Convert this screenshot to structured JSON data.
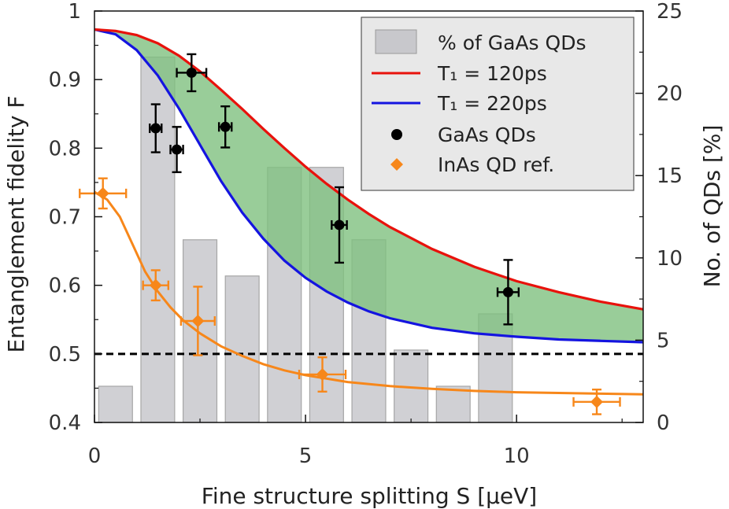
{
  "chart_data": {
    "type": "bar+line+scatter",
    "xlabel": "Fine structure splitting S [µeV]",
    "ylabel": "Entanglement fidelity F",
    "y2label": "No. of QDs [%]",
    "xlim": [
      0,
      13
    ],
    "ylim": [
      0.4,
      1.0
    ],
    "y2lim": [
      0,
      25
    ],
    "xticks": [
      "0",
      "5",
      "10"
    ],
    "yticks": [
      "0.4",
      "0.5",
      "0.6",
      "0.7",
      "0.8",
      "0.9",
      "1"
    ],
    "y2ticks": [
      "0",
      "5",
      "10",
      "15",
      "20",
      "25"
    ],
    "colors": {
      "bars": "#c8c8cc",
      "t120": "#e8120c",
      "t220": "#1414e0",
      "fill": "#7fc07f",
      "gaas": "#000000",
      "inas": "#f7871a",
      "threshold": "#000000"
    },
    "bars": {
      "name": "% of GaAs QDs",
      "centers": [
        0.5,
        1.5,
        2.5,
        3.5,
        4.5,
        5.5,
        6.5,
        7.5,
        8.5,
        9.5
      ],
      "values": [
        2.2,
        22.2,
        11.1,
        8.9,
        15.5,
        15.5,
        11.1,
        4.4,
        2.2,
        6.6
      ]
    },
    "curve_t120": {
      "name": "T₁ = 120ps",
      "x": [
        0,
        0.5,
        1,
        1.5,
        2,
        2.5,
        3,
        3.5,
        4,
        4.5,
        5,
        5.5,
        6,
        6.5,
        7,
        8,
        9,
        10,
        11,
        12,
        13
      ],
      "y": [
        0.973,
        0.971,
        0.965,
        0.953,
        0.935,
        0.912,
        0.885,
        0.857,
        0.828,
        0.8,
        0.773,
        0.748,
        0.725,
        0.704,
        0.685,
        0.653,
        0.627,
        0.606,
        0.59,
        0.576,
        0.565
      ]
    },
    "curve_t220": {
      "name": "T₁ = 220ps",
      "x": [
        0,
        0.5,
        1,
        1.5,
        2,
        2.5,
        3,
        3.5,
        4,
        4.5,
        5,
        5.5,
        6,
        6.5,
        7,
        8,
        9,
        10,
        11,
        12,
        13
      ],
      "y": [
        0.973,
        0.966,
        0.943,
        0.906,
        0.858,
        0.805,
        0.752,
        0.706,
        0.668,
        0.636,
        0.611,
        0.591,
        0.575,
        0.562,
        0.552,
        0.538,
        0.53,
        0.525,
        0.521,
        0.519,
        0.517
      ]
    },
    "gaas_points": {
      "name": "GaAs QDs",
      "points": [
        {
          "x": 1.45,
          "y": 0.829,
          "xerr": 0.14,
          "yerr": 0.035
        },
        {
          "x": 1.95,
          "y": 0.798,
          "xerr": 0.15,
          "yerr": 0.033
        },
        {
          "x": 2.3,
          "y": 0.91,
          "xerr": 0.35,
          "yerr": 0.027
        },
        {
          "x": 3.1,
          "y": 0.831,
          "xerr": 0.15,
          "yerr": 0.03
        },
        {
          "x": 5.8,
          "y": 0.688,
          "xerr": 0.18,
          "yerr": 0.055
        },
        {
          "x": 9.8,
          "y": 0.59,
          "xerr": 0.25,
          "yerr": 0.047
        }
      ]
    },
    "inas_points": {
      "name": "InAs QD ref.",
      "points": [
        {
          "x": 0.2,
          "y": 0.734,
          "xerr": 0.55,
          "yerr": 0.022
        },
        {
          "x": 1.45,
          "y": 0.6,
          "xerr": 0.3,
          "yerr": 0.022
        },
        {
          "x": 2.45,
          "y": 0.548,
          "xerr": 0.4,
          "yerr": 0.05
        },
        {
          "x": 5.4,
          "y": 0.47,
          "xerr": 0.55,
          "yerr": 0.025
        },
        {
          "x": 11.9,
          "y": 0.43,
          "xerr": 0.55,
          "yerr": 0.018
        }
      ]
    },
    "inas_curve": {
      "x": [
        0,
        0.3,
        0.6,
        0.9,
        1.2,
        1.5,
        1.8,
        2.1,
        2.5,
        3,
        3.5,
        4,
        4.5,
        5,
        6,
        7,
        8,
        9,
        10,
        11,
        12,
        13
      ],
      "y": [
        0.736,
        0.725,
        0.7,
        0.66,
        0.62,
        0.591,
        0.568,
        0.549,
        0.53,
        0.511,
        0.497,
        0.485,
        0.476,
        0.469,
        0.459,
        0.453,
        0.449,
        0.446,
        0.444,
        0.443,
        0.442,
        0.441
      ]
    },
    "threshold": {
      "y": 0.5,
      "style": "dashed"
    }
  }
}
